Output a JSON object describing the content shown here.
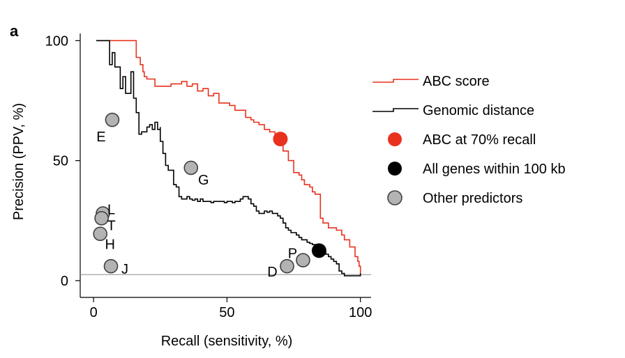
{
  "chart_data": {
    "type": "line",
    "panel_label": "a",
    "xlabel": "Recall (sensitivity, %)",
    "ylabel": "Precision (PPV, %)",
    "xlim": [
      -5,
      104
    ],
    "ylim": [
      -7,
      103
    ],
    "xticks": [
      0,
      50,
      100
    ],
    "yticks": [
      0,
      50,
      100
    ],
    "baseline": 2.5,
    "series": [
      {
        "name": "ABC score",
        "color": "#e8321e",
        "x": [
          1,
          2,
          4,
          6,
          8,
          10,
          12,
          14,
          15,
          16,
          16,
          17,
          17.5,
          18,
          18.5,
          19,
          19,
          20,
          20,
          21,
          22,
          23,
          25,
          27,
          29,
          31,
          33,
          35,
          37,
          39,
          41,
          43,
          45,
          47,
          49,
          51,
          53,
          55,
          57,
          59,
          60,
          62,
          64,
          66,
          68,
          69,
          70,
          70.5,
          71,
          71,
          72,
          73,
          73,
          74,
          75,
          75,
          76,
          77,
          78,
          79,
          80,
          81,
          82,
          83,
          84,
          85,
          85,
          86,
          86,
          87,
          88,
          89,
          90,
          91,
          92,
          93,
          93,
          94,
          95,
          96,
          97,
          98,
          99,
          99.5,
          100
        ],
        "y": [
          100,
          100,
          100,
          100,
          100,
          100,
          100,
          100,
          100,
          100,
          93,
          93,
          90,
          90,
          87,
          87,
          85,
          85,
          84,
          84,
          84,
          81,
          81,
          81,
          82,
          82,
          83,
          81,
          82,
          79,
          80,
          77,
          78,
          74,
          74,
          73,
          71,
          71,
          68,
          67,
          66,
          65,
          63,
          62,
          61,
          60,
          59.5,
          59,
          57,
          54,
          54,
          52,
          50,
          50,
          47,
          45,
          45,
          44,
          42,
          40,
          40,
          39,
          37,
          36,
          36,
          35,
          26,
          26,
          24,
          24,
          22,
          22,
          22,
          21,
          21,
          20,
          19,
          17,
          17,
          14,
          14,
          10,
          8,
          6,
          3
        ]
      },
      {
        "name": "Genomic distance",
        "color": "#000000",
        "x": [
          1,
          2,
          4,
          6,
          6,
          7,
          7,
          8,
          8,
          10,
          10,
          11,
          11,
          12,
          12,
          14,
          14,
          15,
          15,
          16,
          16,
          17,
          17,
          18,
          18,
          19,
          20,
          21,
          22,
          23,
          24,
          25,
          25,
          26,
          26,
          27,
          27,
          28,
          28,
          29,
          30,
          30,
          31,
          31,
          32,
          32,
          33,
          34,
          35,
          36,
          37,
          38,
          39,
          40,
          41,
          42,
          43,
          44,
          45,
          46,
          47,
          48,
          49,
          50,
          51,
          52,
          53,
          54,
          55,
          56,
          57,
          58,
          59,
          60,
          61,
          62,
          63,
          64,
          65,
          66,
          67,
          68,
          69,
          70,
          71,
          72,
          73,
          74,
          75,
          76,
          77,
          78,
          79,
          80,
          81,
          82,
          83,
          84,
          85,
          86,
          87,
          88,
          89,
          90,
          91,
          92,
          92,
          93,
          93,
          94,
          95,
          96,
          97,
          98,
          99,
          100
        ],
        "y": [
          100,
          100,
          100,
          100,
          90,
          90,
          95,
          95,
          89,
          89,
          80,
          80,
          85,
          85,
          78,
          78,
          87,
          87,
          76,
          76,
          70,
          70,
          61,
          61,
          62,
          62,
          64,
          65,
          63,
          66,
          63,
          64,
          58,
          58,
          53,
          53,
          48,
          48,
          46,
          46,
          45,
          40,
          40,
          39,
          37,
          35,
          34,
          34,
          35,
          34,
          33.5,
          34,
          33,
          34,
          33,
          33,
          33,
          32.5,
          33,
          33,
          33,
          33,
          32.5,
          33,
          33,
          32.5,
          33,
          33,
          34,
          35,
          35,
          34,
          32,
          31,
          29,
          28,
          28,
          29,
          28.5,
          29,
          28,
          28,
          27,
          26,
          24,
          22,
          21,
          20,
          20,
          19,
          18,
          17,
          17,
          16,
          15.5,
          15,
          15,
          14.5,
          14,
          12,
          11,
          10,
          9,
          8,
          7,
          6,
          4,
          3,
          3,
          2,
          2,
          2,
          2,
          2,
          2,
          3
        ]
      }
    ],
    "points": [
      {
        "name": "ABC at 70% recall",
        "x": 70,
        "y": 59,
        "color": "#e8321e"
      },
      {
        "name": "All genes within 100 kb",
        "x": 84.5,
        "y": 12.5,
        "color": "#000000"
      }
    ],
    "predictors": [
      {
        "label": "E",
        "x": 7,
        "y": 67
      },
      {
        "label": "G",
        "x": 36.5,
        "y": 47
      },
      {
        "label": "L",
        "x": 3.5,
        "y": 28
      },
      {
        "label": "T",
        "x": 3,
        "y": 26
      },
      {
        "label": "H",
        "x": 2.5,
        "y": 19.5
      },
      {
        "label": "J",
        "x": 6.5,
        "y": 6
      },
      {
        "label": "D",
        "x": 72.5,
        "y": 6
      },
      {
        "label": "P",
        "x": 78.5,
        "y": 8.5
      }
    ],
    "predictor_style": {
      "fill": "#b3b3b3",
      "stroke": "#404040"
    },
    "legend": {
      "placement": "right",
      "entries": [
        {
          "label": "ABC score",
          "kind": "line",
          "color": "#e8321e"
        },
        {
          "label": "Genomic distance",
          "kind": "line",
          "color": "#000000"
        },
        {
          "label": "ABC at 70% recall",
          "kind": "dot",
          "color": "#e8321e"
        },
        {
          "label": "All genes within 100 kb",
          "kind": "dot",
          "color": "#000000"
        },
        {
          "label": "Other predictors",
          "kind": "dot",
          "color": "#b3b3b3"
        }
      ]
    }
  }
}
